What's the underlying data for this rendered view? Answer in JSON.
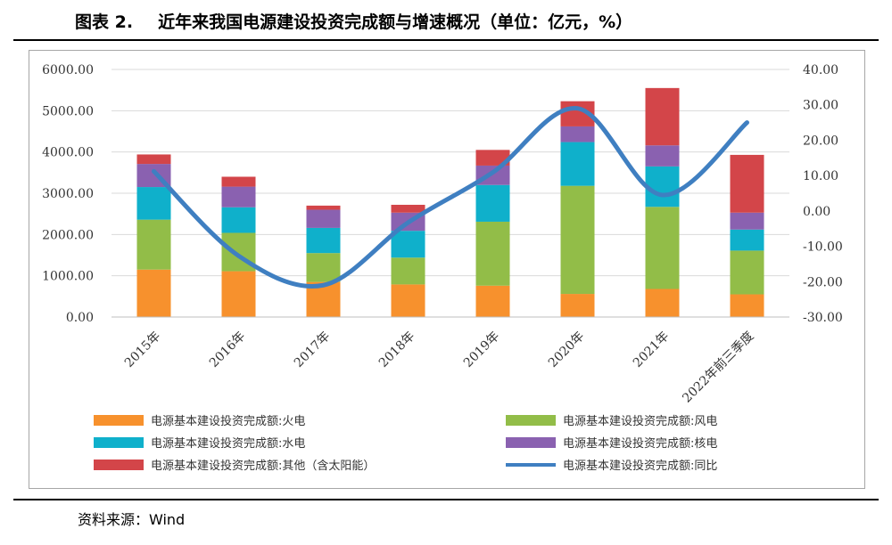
{
  "header": {
    "figure_label": "图表 2.",
    "title": "近年来我国电源建设投资完成额与增速概况（单位：亿元，%）"
  },
  "footer": {
    "source": "资料来源：Wind"
  },
  "colors": {
    "thermal": "#f7912d",
    "wind": "#92bd48",
    "hydro": "#0fb0cb",
    "nuclear": "#8a61b0",
    "other": "#d34549",
    "yoy": "#3f7fc1",
    "grid": "#d9d9d9"
  },
  "chart_data": {
    "type": "bar",
    "stacked": true,
    "categories": [
      "2015年",
      "2016年",
      "2017年",
      "2018年",
      "2019年",
      "2020年",
      "2021年",
      "2022年前三季度"
    ],
    "series": [
      {
        "name": "电源基本建设投资完成额:火电",
        "key": "thermal",
        "values": [
          1150,
          1110,
          850,
          790,
          760,
          560,
          680,
          550
        ]
      },
      {
        "name": "电源基本建设投资完成额:风电",
        "key": "wind",
        "values": [
          1210,
          930,
          700,
          650,
          1550,
          2620,
          1990,
          1060
        ]
      },
      {
        "name": "电源基本建设投资完成额:水电",
        "key": "hydro",
        "values": [
          790,
          620,
          610,
          650,
          890,
          1060,
          980,
          510
        ]
      },
      {
        "name": "电源基本建设投资完成额:核电",
        "key": "nuclear",
        "values": [
          560,
          500,
          440,
          440,
          470,
          380,
          510,
          410
        ]
      },
      {
        "name": "电源基本建设投资完成额:其他（含太阳能）",
        "key": "other",
        "values": [
          230,
          240,
          100,
          190,
          380,
          610,
          1390,
          1400
        ]
      }
    ],
    "line_series": {
      "name": "电源基本建设投资完成额:同比",
      "key": "yoy",
      "axis": "right",
      "values": [
        11.2,
        -12.7,
        -21.0,
        -3.3,
        10.9,
        29.0,
        4.5,
        25.0
      ]
    },
    "left_axis": {
      "ylim": [
        0,
        6000
      ],
      "ticks": [
        "0.00",
        "1000.00",
        "2000.00",
        "3000.00",
        "4000.00",
        "5000.00",
        "6000.00"
      ],
      "tick_values": [
        0,
        1000,
        2000,
        3000,
        4000,
        5000,
        6000
      ]
    },
    "right_axis": {
      "ylim": [
        -30,
        40
      ],
      "ticks": [
        "-30.00",
        "-20.00",
        "-10.00",
        "0.00",
        "10.00",
        "20.00",
        "30.00",
        "40.00"
      ],
      "tick_values": [
        -30,
        -20,
        -10,
        0,
        10,
        20,
        30,
        40
      ]
    },
    "legend": {
      "placement": "bottom",
      "columns": 2,
      "order": [
        "thermal",
        "wind",
        "hydro",
        "nuclear",
        "other",
        "yoy"
      ]
    }
  }
}
